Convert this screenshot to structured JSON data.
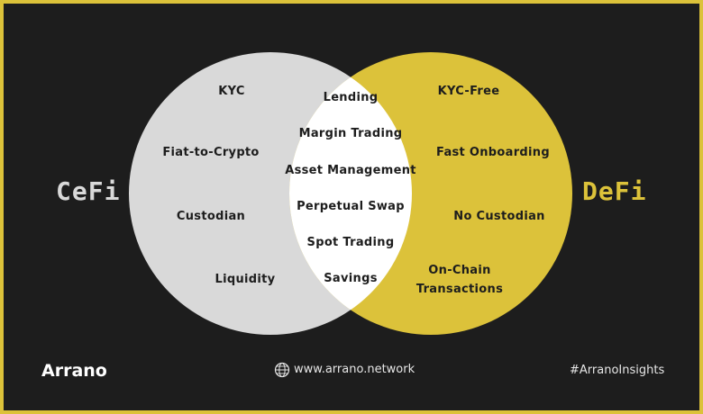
{
  "brand": "Arrano",
  "website": "www.arrano.network",
  "hashtag": "#ArranoInsights",
  "colors": {
    "background": "#1d1d1d",
    "border": "#dcc23a",
    "cefi_circle": "#d9d9d9",
    "defi_circle": "#dcc23a",
    "overlap": "#ffffff",
    "text_dark": "#1d1d1d"
  },
  "left_title": "CeFi",
  "right_title": "DeFi",
  "cefi_items": [
    "KYC",
    "Fiat-to-Crypto",
    "Custodian",
    "Liquidity"
  ],
  "shared_items": [
    "Lending",
    "Margin Trading",
    "Asset Management",
    "Perpetual Swap",
    "Spot Trading",
    "Savings"
  ],
  "defi_items": [
    "KYC-Free",
    "Fast Onboarding",
    "No Custodian",
    "On-Chain",
    "Transactions"
  ]
}
